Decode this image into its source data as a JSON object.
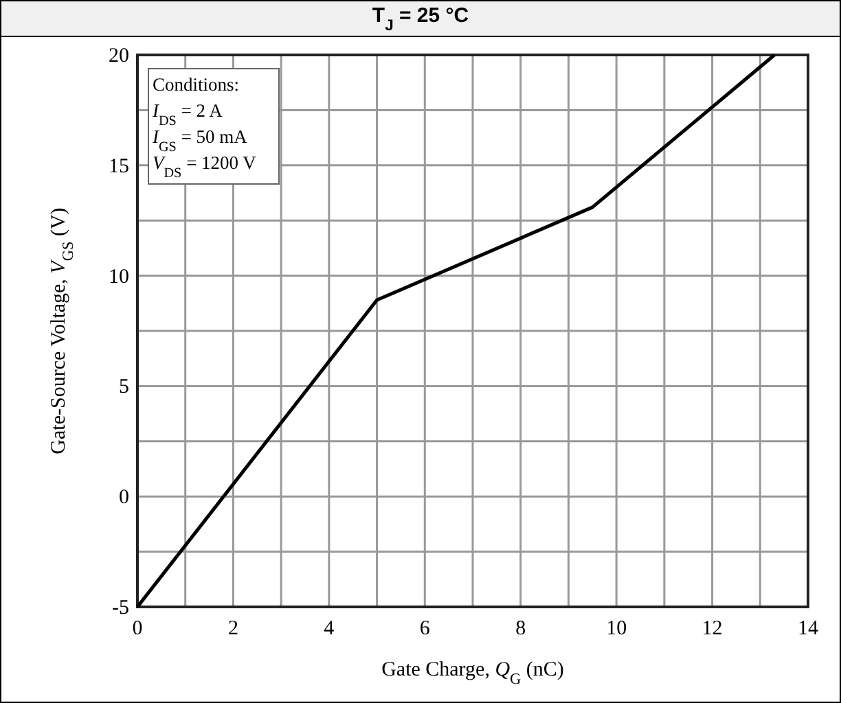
{
  "chart_data": {
    "type": "line",
    "title": "T$_{J}$ = 25 °C",
    "xlabel": "Gate Charge, Q$_{G}$ (nC)",
    "ylabel": "Gate-Source Voltage, V$_{GS}$ (V)",
    "annotations": [
      "Conditions:",
      "I$_{DS}$ = 2 A",
      "I$_{GS}$ = 50 mA",
      "V$_{DS}$ = 1200 V"
    ],
    "x": [
      0,
      5,
      9.5,
      13.3
    ],
    "series": [
      {
        "color": "#000000",
        "values": [
          -5,
          8.9,
          13.1,
          20
        ]
      }
    ],
    "xlim": [
      0,
      14
    ],
    "xticks": [
      0,
      {
        "value": 1,
        "label": null
      },
      2,
      {
        "value": 3,
        "label": null
      },
      4,
      {
        "value": 5,
        "label": null
      },
      6,
      {
        "value": 7,
        "label": null
      },
      8,
      {
        "value": 9,
        "label": null
      },
      10,
      {
        "value": 11,
        "label": null
      },
      12,
      {
        "value": 13,
        "label": null
      },
      14
    ],
    "ylim": [
      -5,
      20
    ],
    "yticks": [
      -5,
      {
        "value": -2.5,
        "label": null
      },
      0,
      {
        "value": 2.5,
        "label": null
      },
      5,
      {
        "value": 7.5,
        "label": null
      },
      10,
      {
        "value": 12.5,
        "label": null
      },
      15,
      {
        "value": 17.5,
        "label": null
      },
      20
    ],
    "grid": true,
    "marker": "none",
    "line_style": "solid"
  }
}
